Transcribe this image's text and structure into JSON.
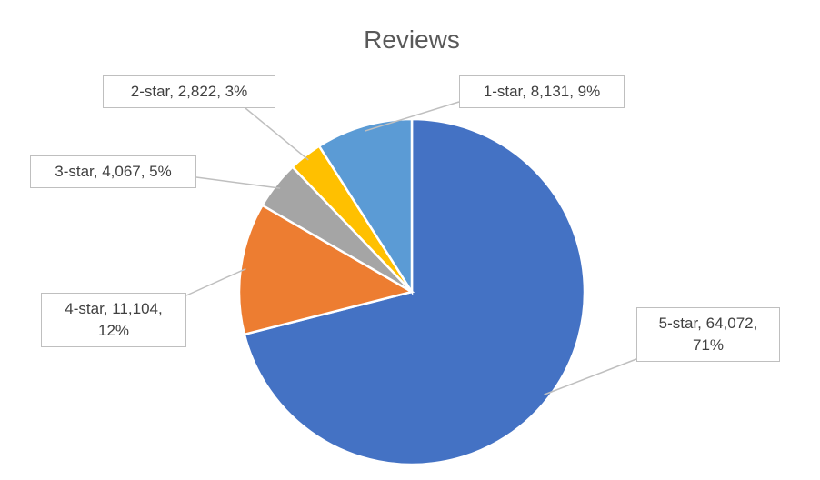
{
  "chart_data": {
    "type": "pie",
    "title": "Reviews",
    "values": [
      64072,
      11104,
      4067,
      2822,
      8131
    ],
    "value_labels": [
      "5-star, 64,072, 71%",
      "4-star, 11,104, 12%",
      "3-star, 4,067, 5%",
      "2-star, 2,822, 3%",
      "1-star, 8,131, 9%"
    ],
    "colors": [
      "#4472c4",
      "#ed7d31",
      "#a5a5a5",
      "#ffc000",
      "#5b9bd5"
    ]
  }
}
